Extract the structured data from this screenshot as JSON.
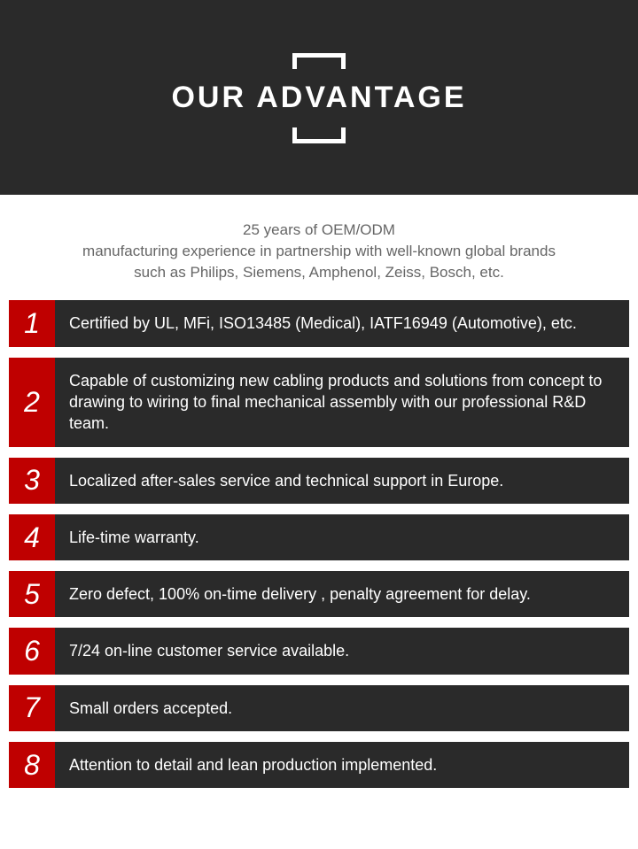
{
  "header": {
    "title": "OUR ADVANTAGE",
    "bg_color": "#2a2a2a",
    "title_color": "#ffffff",
    "title_fontsize": 34
  },
  "intro": {
    "text": "25 years of OEM/ODM\nmanufacturing experience in partnership with well-known global brands\nsuch as Philips, Siemens, Amphenol, Zeiss, Bosch, etc.",
    "color": "#666666",
    "fontsize": 17
  },
  "advantages": [
    {
      "n": "1",
      "text": "Certified by UL, MFi, ISO13485 (Medical), IATF16949 (Automotive), etc."
    },
    {
      "n": "2",
      "text": "Capable of customizing new cabling products and solutions from concept to drawing to wiring to final mechanical assembly with our professional R&D team."
    },
    {
      "n": "3",
      "text": "Localized after-sales service and technical support in Europe."
    },
    {
      "n": "4",
      "text": "Life-time warranty."
    },
    {
      "n": "5",
      "text": "Zero defect, 100% on-time delivery , penalty agreement for delay."
    },
    {
      "n": "6",
      "text": "7/24 on-line customer service available."
    },
    {
      "n": "7",
      "text": "Small orders accepted."
    },
    {
      "n": "8",
      "text": "Attention to detail and lean production implemented."
    }
  ],
  "styles": {
    "num_bg": "#bf0000",
    "num_color": "#ffffff",
    "num_fontsize": 32,
    "desc_bg": "#2a2a2a",
    "desc_color": "#ffffff",
    "desc_fontsize": 18,
    "row_gap": 12
  }
}
